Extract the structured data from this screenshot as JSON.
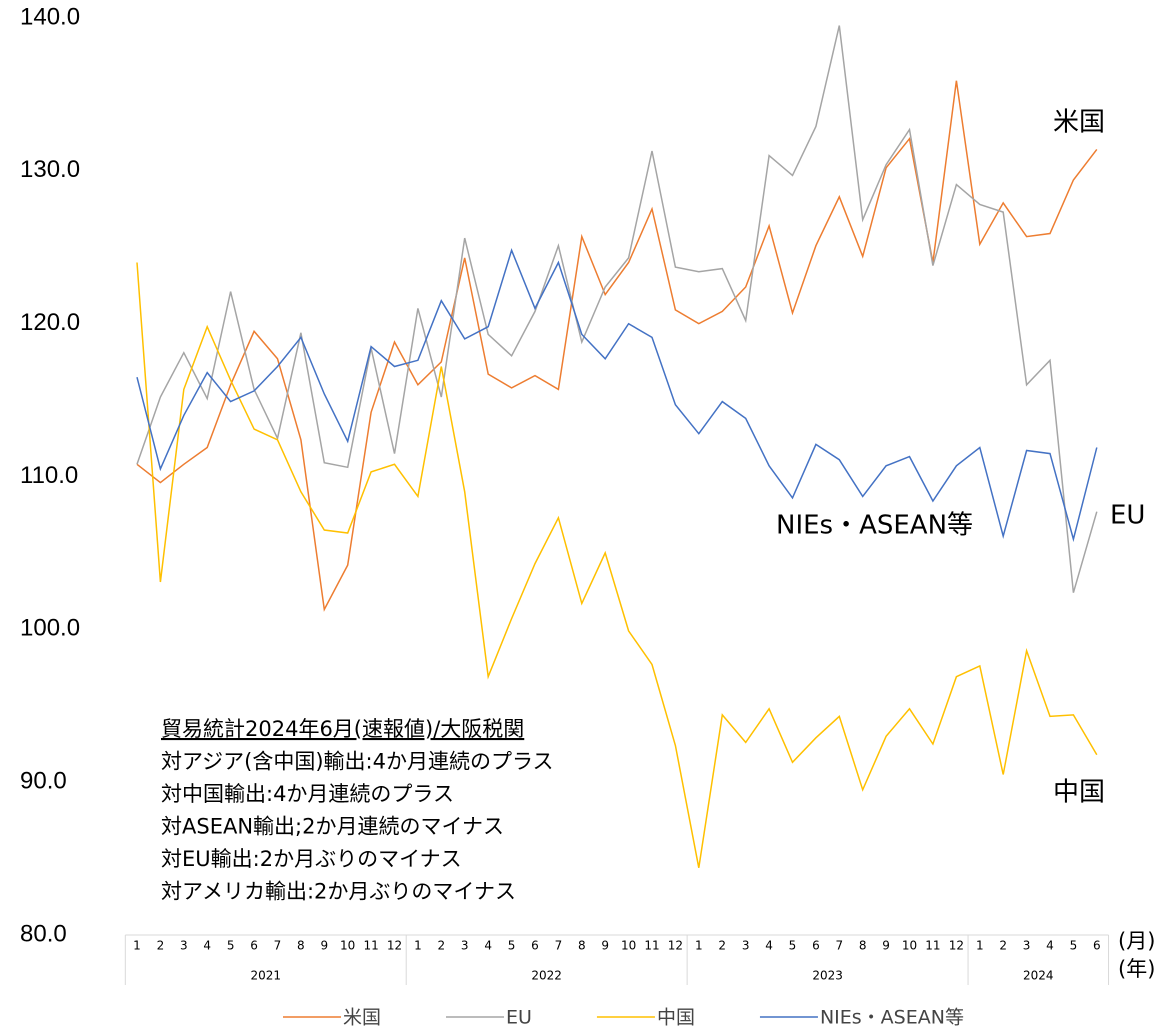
{
  "chart_data": {
    "type": "line",
    "categories": [
      "1",
      "2",
      "3",
      "4",
      "5",
      "6",
      "7",
      "8",
      "9",
      "10",
      "11",
      "12",
      "1",
      "2",
      "3",
      "4",
      "5",
      "6",
      "7",
      "8",
      "9",
      "10",
      "11",
      "12",
      "1",
      "2",
      "3",
      "4",
      "5",
      "6",
      "7",
      "8",
      "9",
      "10",
      "11",
      "12",
      "1",
      "2",
      "3",
      "4",
      "5",
      "6"
    ],
    "years": [
      "2021",
      "2022",
      "2023",
      "2024"
    ],
    "x_unit_labels": [
      "(月)",
      "(年)"
    ],
    "ylim": [
      80,
      140
    ],
    "yticks": [
      {
        "value": 80,
        "label": "80.0"
      },
      {
        "value": 90,
        "label": "90.0"
      },
      {
        "value": 100,
        "label": "100.0"
      },
      {
        "value": 110,
        "label": "110.0"
      },
      {
        "value": 120,
        "label": "120.0"
      },
      {
        "value": 130,
        "label": "130.0"
      },
      {
        "value": 140,
        "label": "140.0"
      }
    ],
    "grid": false,
    "annotations": [
      "貿易統計2024年6月(速報値)/大阪税関",
      "対アジア(含中国)輸出:4か月連続のプラス",
      "対中国輸出:4か月連続のプラス",
      "対ASEAN輸出;2か月連続のマイナス",
      "対EU輸出:2か月ぶりのマイナス",
      "対アメリカ輸出:2か月ぶりのマイナス"
    ],
    "series": [
      {
        "name": "米国",
        "color": "#ED7D31",
        "values": [
          110.8,
          109.6,
          110.8,
          111.9,
          116.0,
          119.5,
          117.7,
          112.4,
          101.3,
          104.2,
          114.2,
          118.8,
          116.0,
          117.5,
          124.3,
          116.7,
          115.8,
          116.6,
          115.7,
          125.7,
          121.9,
          124.0,
          127.5,
          120.9,
          120.0,
          120.8,
          122.4,
          126.4,
          120.7,
          125.1,
          128.3,
          124.4,
          130.2,
          132.1,
          124.0,
          135.9,
          125.2,
          127.9,
          125.7,
          125.9,
          129.4,
          131.4
        ]
      },
      {
        "name": "EU",
        "color": "#A5A5A5",
        "values": [
          110.8,
          115.2,
          118.1,
          115.1,
          122.1,
          115.7,
          112.5,
          119.4,
          110.9,
          110.6,
          118.4,
          111.5,
          121.0,
          115.2,
          125.6,
          119.3,
          117.9,
          120.8,
          125.1,
          118.8,
          122.4,
          124.3,
          131.3,
          123.7,
          123.4,
          123.6,
          120.2,
          131.0,
          129.7,
          132.9,
          139.5,
          126.8,
          130.4,
          132.7,
          123.8,
          129.1,
          127.8,
          127.3,
          116.0,
          117.6,
          102.4,
          107.7
        ]
      },
      {
        "name": "中国",
        "color": "#FFC000",
        "values": [
          124.0,
          103.1,
          115.7,
          119.8,
          116.3,
          113.1,
          112.4,
          109.0,
          106.5,
          106.3,
          110.3,
          110.8,
          108.7,
          117.2,
          109.0,
          96.9,
          100.7,
          104.3,
          107.3,
          101.7,
          105.0,
          99.9,
          97.7,
          92.4,
          84.4,
          94.4,
          92.6,
          94.8,
          91.3,
          92.9,
          94.3,
          89.5,
          93.0,
          94.8,
          92.5,
          96.9,
          97.6,
          90.5,
          98.6,
          94.3,
          94.4,
          91.8
        ]
      },
      {
        "name": "NIEs・ASEAN等",
        "color": "#4472C4",
        "values": [
          116.5,
          110.5,
          114.0,
          116.8,
          114.9,
          115.6,
          117.2,
          119.1,
          115.4,
          112.3,
          118.5,
          117.2,
          117.6,
          121.5,
          119.0,
          119.8,
          124.8,
          121.0,
          124.0,
          119.3,
          117.7,
          120.0,
          119.1,
          114.7,
          112.8,
          114.9,
          113.8,
          110.7,
          108.6,
          112.1,
          111.1,
          108.7,
          110.7,
          111.3,
          108.4,
          110.7,
          111.9,
          106.1,
          111.7,
          111.5,
          105.9,
          111.9
        ]
      }
    ]
  }
}
